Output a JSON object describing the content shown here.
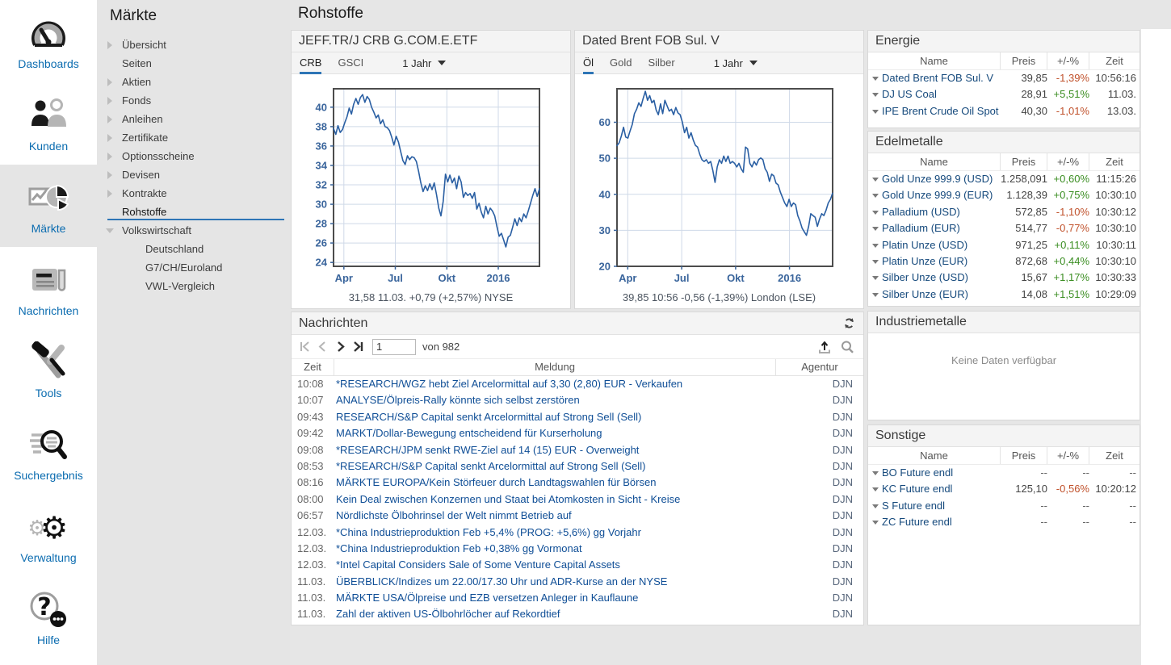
{
  "header": {
    "title": "Rohstoffe"
  },
  "icon_sidebar": {
    "items": [
      {
        "label": "Dashboards",
        "icon": "gauge-icon",
        "active": false
      },
      {
        "label": "Kunden",
        "icon": "users-icon",
        "active": false
      },
      {
        "label": "Märkte",
        "icon": "chart-pie-icon",
        "active": true
      },
      {
        "label": "Nachrichten",
        "icon": "newspaper-icon",
        "active": false
      },
      {
        "label": "Tools",
        "icon": "tools-icon",
        "active": false
      },
      {
        "label": "Suchergebnis",
        "icon": "search-results-icon",
        "active": false
      },
      {
        "label": "Verwaltung",
        "icon": "gears-icon",
        "active": false
      },
      {
        "label": "Hilfe",
        "icon": "help-icon",
        "active": false
      }
    ]
  },
  "nav_sidebar": {
    "title": "Märkte",
    "items": [
      {
        "label": "Übersicht",
        "arrow": "right",
        "child": false,
        "selected": false
      },
      {
        "label": "Seiten",
        "arrow": "none",
        "child": false,
        "selected": false
      },
      {
        "label": "Aktien",
        "arrow": "right",
        "child": false,
        "selected": false
      },
      {
        "label": "Fonds",
        "arrow": "right",
        "child": false,
        "selected": false
      },
      {
        "label": "Anleihen",
        "arrow": "right",
        "child": false,
        "selected": false
      },
      {
        "label": "Zertifikate",
        "arrow": "right",
        "child": false,
        "selected": false
      },
      {
        "label": "Optionsscheine",
        "arrow": "right",
        "child": false,
        "selected": false
      },
      {
        "label": "Devisen",
        "arrow": "right",
        "child": false,
        "selected": false
      },
      {
        "label": "Kontrakte",
        "arrow": "right",
        "child": false,
        "selected": false
      },
      {
        "label": "Rohstoffe",
        "arrow": "none",
        "child": false,
        "selected": true
      },
      {
        "label": "Volkswirtschaft",
        "arrow": "down",
        "child": false,
        "selected": false
      },
      {
        "label": "Deutschland",
        "arrow": "none",
        "child": true,
        "selected": false
      },
      {
        "label": "G7/CH/Euroland",
        "arrow": "none",
        "child": true,
        "selected": false
      },
      {
        "label": "VWL-Vergleich",
        "arrow": "none",
        "child": true,
        "selected": false
      }
    ]
  },
  "chart_panels": [
    {
      "panel_title": "JEFF.TR/J CRB G.COM.E.ETF",
      "tabs": [
        "CRB",
        "GSCI"
      ],
      "active_tab": "CRB",
      "period": "1 Jahr",
      "footer": "31,58 11.03. +0,79 (+2,57%) NYSE",
      "chart_data": {
        "type": "line",
        "title": "JEFF.TR/J CRB G.COM.E.ETF 1 Jahr",
        "line_color": "#2a5fa3",
        "ylim": [
          23.6,
          41.9
        ],
        "yticks": [
          24,
          26,
          28,
          30,
          32,
          34,
          36,
          38,
          40
        ],
        "xticks": [
          {
            "label": "Apr",
            "pos": 0.05
          },
          {
            "label": "Jul",
            "pos": 0.3
          },
          {
            "label": "Okt",
            "pos": 0.55
          },
          {
            "label": "2016",
            "pos": 0.8
          }
        ],
        "values": [
          37.8,
          37.2,
          38.1,
          37.4,
          37.7,
          38.4,
          39.0,
          39.9,
          39.3,
          40.3,
          40.9,
          40.3,
          41.0,
          41.3,
          40.5,
          41.1,
          40.8,
          40.0,
          39.5,
          38.9,
          39.2,
          38.3,
          38.7,
          38.0,
          37.9,
          37.6,
          36.9,
          36.1,
          37.0,
          36.4,
          35.4,
          34.5,
          34.1,
          35.0,
          34.6,
          34.9,
          34.8,
          34.4,
          33.4,
          32.2,
          31.3,
          31.9,
          31.4,
          32.1,
          31.5,
          32.2,
          31.0,
          29.6,
          28.8,
          30.3,
          33.1,
          32.3,
          33.0,
          32.2,
          32.7,
          31.6,
          32.9,
          32.3,
          30.7,
          31.2,
          30.9,
          31.1,
          30.6,
          31.2,
          29.5,
          30.1,
          29.2,
          28.6,
          29.8,
          29.0,
          29.6,
          29.3,
          28.8,
          27.7,
          26.7,
          27.0,
          26.3,
          25.6,
          26.6,
          26.8,
          27.6,
          28.5,
          27.8,
          28.6,
          28.2,
          29.0,
          28.6,
          29.3,
          30.1,
          30.9,
          31.6,
          30.8,
          31.6
        ]
      }
    },
    {
      "panel_title": "Dated Brent FOB Sul. V",
      "tabs": [
        "Öl",
        "Gold",
        "Silber"
      ],
      "active_tab": "Öl",
      "period": "1 Jahr",
      "footer": "39,85 10:56 -0,56 (-1,39%) London (LSE)",
      "chart_data": {
        "type": "line",
        "title": "Dated Brent FOB Sul. V 1 Jahr",
        "line_color": "#2a5fa3",
        "ylim": [
          20,
          69.3
        ],
        "yticks": [
          20,
          30,
          40,
          50,
          60
        ],
        "xticks": [
          {
            "label": "Apr",
            "pos": 0.05
          },
          {
            "label": "Jul",
            "pos": 0.3
          },
          {
            "label": "Okt",
            "pos": 0.55
          },
          {
            "label": "2016",
            "pos": 0.8
          }
        ],
        "values": [
          53.5,
          54.3,
          56.2,
          58.6,
          55.9,
          55.6,
          57.6,
          59.4,
          62.4,
          63.6,
          65.4,
          64.4,
          66.6,
          68.6,
          66.1,
          67.4,
          65.4,
          66.1,
          63.4,
          62.1,
          65.1,
          62.4,
          66.1,
          64.6,
          63.1,
          63.6,
          62.1,
          64.1,
          62.6,
          62.1,
          60.1,
          57.1,
          58.6,
          55.6,
          57.1,
          55.1,
          53.6,
          53.1,
          51.1,
          49.6,
          49.1,
          49.6,
          48.6,
          49.1,
          46.6,
          43.3,
          47.6,
          49.6,
          48.6,
          50.6,
          49.1,
          50.6,
          48.6,
          49.1,
          48.6,
          47.6,
          48.6,
          47.1,
          46.1,
          53.1,
          52.6,
          48.6,
          47.6,
          49.1,
          48.1,
          49.6,
          50.1,
          49.6,
          47.1,
          46.1,
          43.6,
          45.6,
          45.1,
          43.1,
          42.6,
          40.6,
          39.1,
          37.6,
          36.6,
          38.6,
          36.6,
          37.6,
          37.1,
          34.1,
          32.6,
          30.6,
          29.6,
          28.6,
          31.1,
          34.6,
          34.1,
          33.6,
          31.1,
          33.1,
          34.6,
          34.1,
          35.6,
          37.6,
          38.6,
          40.3
        ]
      }
    }
  ],
  "news": {
    "title": "Nachrichten",
    "pagination": {
      "page": "1",
      "of_label": "von 982"
    },
    "columns": {
      "zeit": "Zeit",
      "meldung": "Meldung",
      "agentur": "Agentur"
    },
    "rows": [
      {
        "time": "10:08",
        "headline": "*RESEARCH/WGZ hebt Ziel Arcelormittal auf 3,30 (2,80) EUR - Verkaufen",
        "agency": "DJN"
      },
      {
        "time": "10:07",
        "headline": "ANALYSE/Ölpreis-Rally könnte sich selbst zerstören",
        "agency": "DJN"
      },
      {
        "time": "09:43",
        "headline": "RESEARCH/S&P Capital senkt Arcelormittal auf Strong Sell (Sell)",
        "agency": "DJN"
      },
      {
        "time": "09:42",
        "headline": "MARKT/Dollar-Bewegung entscheidend für Kurserholung",
        "agency": "DJN"
      },
      {
        "time": "09:08",
        "headline": "*RESEARCH/JPM senkt RWE-Ziel auf 14 (15) EUR - Overweight",
        "agency": "DJN"
      },
      {
        "time": "08:53",
        "headline": "*RESEARCH/S&P Capital senkt Arcelormittal auf Strong Sell (Sell)",
        "agency": "DJN"
      },
      {
        "time": "08:16",
        "headline": "MÄRKTE EUROPA/Kein Störfeuer durch Landtagswahlen für Börsen",
        "agency": "DJN"
      },
      {
        "time": "08:00",
        "headline": "Kein Deal zwischen Konzernen und Staat bei Atomkosten in Sicht - Kreise",
        "agency": "DJN"
      },
      {
        "time": "06:57",
        "headline": "Nördlichste Ölbohrinsel der Welt nimmt Betrieb auf",
        "agency": "DJN"
      },
      {
        "time": "12.03.",
        "headline": "*China Industrieproduktion Feb +5,4% (PROG: +5,6%) gg Vorjahr",
        "agency": "DJN"
      },
      {
        "time": "12.03.",
        "headline": "*China Industrieproduktion Feb +0,38% gg Vormonat",
        "agency": "DJN"
      },
      {
        "time": "12.03.",
        "headline": "*Intel Capital Considers Sale of Some Venture Capital Assets",
        "agency": "DJN"
      },
      {
        "time": "11.03.",
        "headline": "ÜBERBLICK/Indizes um 22.00/17.30 Uhr und ADR-Kurse an der NYSE",
        "agency": "DJN"
      },
      {
        "time": "11.03.",
        "headline": "MÄRKTE USA/Ölpreise und EZB versetzen Anleger in Kauflaune",
        "agency": "DJN"
      },
      {
        "time": "11.03.",
        "headline": "Zahl der aktiven US-Ölbohrlöcher auf Rekordtief",
        "agency": "DJN"
      }
    ]
  },
  "quotes": {
    "columns": {
      "name": "Name",
      "price": "Preis",
      "change": "+/-%",
      "time": "Zeit"
    },
    "panels": [
      {
        "title": "Energie",
        "rows": [
          {
            "name": "Dated Brent FOB Sul. V",
            "price": "39,85",
            "change": "-1,39%",
            "dir": "down",
            "time": "10:56:16"
          },
          {
            "name": "DJ US Coal",
            "price": "28,91",
            "change": "+5,51%",
            "dir": "up",
            "time": "11.03."
          },
          {
            "name": "IPE Brent Crude Oil Spot",
            "price": "40,30",
            "change": "-1,01%",
            "dir": "down",
            "time": "13.03."
          }
        ]
      },
      {
        "title": "Edelmetalle",
        "rows": [
          {
            "name": "Gold Unze 999.9 (USD)",
            "price": "1.258,091",
            "change": "+0,60%",
            "dir": "up",
            "time": "11:15:26"
          },
          {
            "name": "Gold Unze 999.9 (EUR)",
            "price": "1.128,39",
            "change": "+0,75%",
            "dir": "up",
            "time": "10:30:10"
          },
          {
            "name": "Palladium (USD)",
            "price": "572,85",
            "change": "-1,10%",
            "dir": "down",
            "time": "10:30:12"
          },
          {
            "name": "Palladium (EUR)",
            "price": "514,77",
            "change": "-0,77%",
            "dir": "down",
            "time": "10:30:10"
          },
          {
            "name": "Platin Unze (USD)",
            "price": "971,25",
            "change": "+0,11%",
            "dir": "up",
            "time": "10:30:11"
          },
          {
            "name": "Platin Unze (EUR)",
            "price": "872,68",
            "change": "+0,44%",
            "dir": "up",
            "time": "10:30:10"
          },
          {
            "name": "Silber Unze (USD)",
            "price": "15,67",
            "change": "+1,17%",
            "dir": "up",
            "time": "10:30:33"
          },
          {
            "name": "Silber Unze (EUR)",
            "price": "14,08",
            "change": "+1,51%",
            "dir": "up",
            "time": "10:29:09"
          }
        ]
      },
      {
        "title": "Industriemetalle",
        "empty_message": "Keine Daten verfügbar",
        "rows": []
      },
      {
        "title": "Sonstige",
        "rows": [
          {
            "name": "BO Future endl",
            "price": "--",
            "change": "--",
            "dir": "neutral",
            "time": "--"
          },
          {
            "name": "KC Future endl",
            "price": "125,10",
            "change": "-0,56%",
            "dir": "down",
            "time": "10:20:12"
          },
          {
            "name": "S Future endl",
            "price": "--",
            "change": "--",
            "dir": "neutral",
            "time": "--"
          },
          {
            "name": "ZC Future endl",
            "price": "--",
            "change": "--",
            "dir": "neutral",
            "time": "--"
          }
        ]
      }
    ]
  },
  "colors": {
    "accent_blue": "#2e75b6",
    "link_blue": "#0f4e96",
    "sidebar_label_blue": "#0b6cb0",
    "positive_green": "#3a8d21",
    "negative_red": "#c0512b",
    "chart_line": "#2a5fa3",
    "panel_gray": "#e6e6e6"
  }
}
